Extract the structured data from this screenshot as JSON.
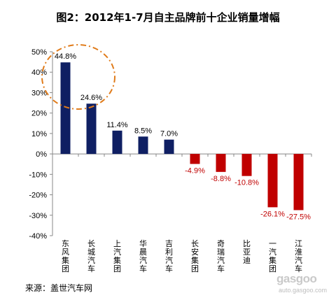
{
  "chart_data": {
    "type": "bar",
    "title": "图2：2012年1-7月自主品牌前十企业销量增幅",
    "categories": [
      "东风集团",
      "长城汽车",
      "上汽集团",
      "华晨汽车",
      "吉利汽车",
      "长安集团",
      "奇瑞汽车",
      "比亚迪",
      "一汽集团",
      "江淮汽车"
    ],
    "values": [
      44.8,
      24.6,
      11.4,
      8.5,
      7.0,
      -4.9,
      -8.8,
      -10.8,
      -26.1,
      -27.5
    ],
    "data_labels": [
      "44.8%",
      "24.6%",
      "11.4%",
      "8.5%",
      "7.0%",
      "-4.9%",
      "-8.8%",
      "-10.8%",
      "-26.1%",
      "-27.5%"
    ],
    "ylim": [
      -40,
      50
    ],
    "yticks": [
      "50%",
      "40%",
      "30%",
      "20%",
      "10%",
      "0%",
      "-10%",
      "-20%",
      "-30%",
      "-40%"
    ],
    "xlabel": "",
    "ylabel": "",
    "grid": false,
    "colors": {
      "positive": "#0f1f63",
      "negative": "#c00000",
      "positive_label": "#000000",
      "negative_label": "#c00000",
      "highlight": "#e07b1a"
    }
  },
  "footer": {
    "source": "来源：盖世汽车网",
    "watermark_logo": "gasgoo",
    "watermark_url": "auto.gasgoo.com"
  }
}
